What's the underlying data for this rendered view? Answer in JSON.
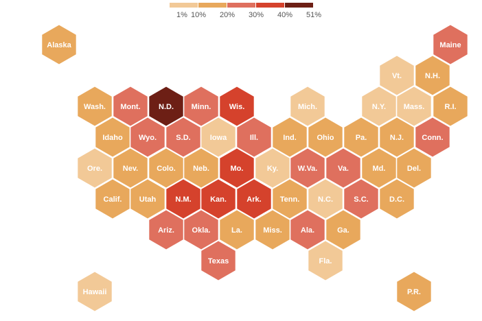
{
  "legend": {
    "labels": [
      "1%",
      "10%",
      "20%",
      "30%",
      "40%",
      "51%"
    ],
    "colors": [
      "#f2c997",
      "#e8a85c",
      "#df705e",
      "#d5422c",
      "#6d1f15"
    ]
  },
  "tiles": [
    {
      "label": "Alaska",
      "color": "#e8a85c"
    },
    {
      "label": "Maine",
      "color": "#df705e"
    },
    {
      "label": "Vt.",
      "color": "#f2c997"
    },
    {
      "label": "N.H.",
      "color": "#e8a85c"
    },
    {
      "label": "Wash.",
      "color": "#e8a85c"
    },
    {
      "label": "Mont.",
      "color": "#df705e"
    },
    {
      "label": "N.D.",
      "color": "#6d1f15"
    },
    {
      "label": "Minn.",
      "color": "#df705e"
    },
    {
      "label": "Wis.",
      "color": "#d5422c"
    },
    {
      "label": "Mich.",
      "color": "#f2c997"
    },
    {
      "label": "N.Y.",
      "color": "#f2c997"
    },
    {
      "label": "Mass.",
      "color": "#f2c997"
    },
    {
      "label": "R.I.",
      "color": "#e8a85c"
    },
    {
      "label": "Idaho",
      "color": "#e8a85c"
    },
    {
      "label": "Wyo.",
      "color": "#df705e"
    },
    {
      "label": "S.D.",
      "color": "#df705e"
    },
    {
      "label": "Iowa",
      "color": "#f2c997"
    },
    {
      "label": "Ill.",
      "color": "#df705e"
    },
    {
      "label": "Ind.",
      "color": "#e8a85c"
    },
    {
      "label": "Ohio",
      "color": "#e8a85c"
    },
    {
      "label": "Pa.",
      "color": "#e8a85c"
    },
    {
      "label": "N.J.",
      "color": "#e8a85c"
    },
    {
      "label": "Conn.",
      "color": "#df705e"
    },
    {
      "label": "Ore.",
      "color": "#f2c997"
    },
    {
      "label": "Nev.",
      "color": "#e8a85c"
    },
    {
      "label": "Colo.",
      "color": "#e8a85c"
    },
    {
      "label": "Neb.",
      "color": "#e8a85c"
    },
    {
      "label": "Mo.",
      "color": "#d5422c"
    },
    {
      "label": "Ky.",
      "color": "#f2c997"
    },
    {
      "label": "W.Va.",
      "color": "#df705e"
    },
    {
      "label": "Va.",
      "color": "#df705e"
    },
    {
      "label": "Md.",
      "color": "#e8a85c"
    },
    {
      "label": "Del.",
      "color": "#e8a85c"
    },
    {
      "label": "Calif.",
      "color": "#e8a85c"
    },
    {
      "label": "Utah",
      "color": "#e8a85c"
    },
    {
      "label": "N.M.",
      "color": "#d5422c"
    },
    {
      "label": "Kan.",
      "color": "#d5422c"
    },
    {
      "label": "Ark.",
      "color": "#d5422c"
    },
    {
      "label": "Tenn.",
      "color": "#e8a85c"
    },
    {
      "label": "N.C.",
      "color": "#f2c997"
    },
    {
      "label": "S.C.",
      "color": "#df705e"
    },
    {
      "label": "D.C.",
      "color": "#e8a85c"
    },
    {
      "label": "Ariz.",
      "color": "#df705e"
    },
    {
      "label": "Okla.",
      "color": "#df705e"
    },
    {
      "label": "La.",
      "color": "#e8a85c"
    },
    {
      "label": "Miss.",
      "color": "#e8a85c"
    },
    {
      "label": "Ala.",
      "color": "#df705e"
    },
    {
      "label": "Ga.",
      "color": "#e8a85c"
    },
    {
      "label": "Texas",
      "color": "#df705e"
    },
    {
      "label": "Fla.",
      "color": "#f2c997"
    },
    {
      "label": "Hawaii",
      "color": "#f2c997"
    },
    {
      "label": "P.R.",
      "color": "#e8a85c"
    }
  ]
}
